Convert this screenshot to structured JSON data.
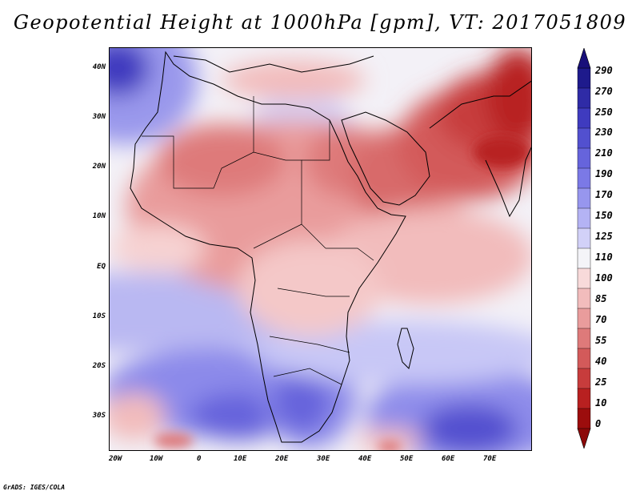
{
  "title": "Geopotential Height at 1000hPa [gpm], VT: 2017051809",
  "credit": "GrADS: IGES/COLA",
  "map": {
    "latitude_labels": [
      "40N",
      "30N",
      "20N",
      "10N",
      "EQ",
      "10S",
      "20S",
      "30S"
    ],
    "longitude_labels": [
      "20W",
      "10W",
      "0",
      "10E",
      "20E",
      "30E",
      "40E",
      "50E",
      "60E",
      "70E"
    ]
  },
  "colorbar": {
    "levels": [
      "290",
      "270",
      "250",
      "230",
      "210",
      "190",
      "170",
      "150",
      "125",
      "110",
      "100",
      "85",
      "70",
      "55",
      "40",
      "25",
      "10",
      "0"
    ],
    "colors": [
      "#1e1a8c",
      "#2f2ba6",
      "#3f3bbf",
      "#5250cf",
      "#6664dc",
      "#7b79e6",
      "#9796ee",
      "#b4b3f4",
      "#d2d1f8",
      "#f4f4f8",
      "#f8dada",
      "#f2bcbc",
      "#e99c9c",
      "#de7a7a",
      "#d35a5a",
      "#c73c3c",
      "#b82020",
      "#9c0d0d"
    ],
    "top_arrow_color": "#180f7a",
    "bottom_arrow_color": "#8c0808"
  }
}
